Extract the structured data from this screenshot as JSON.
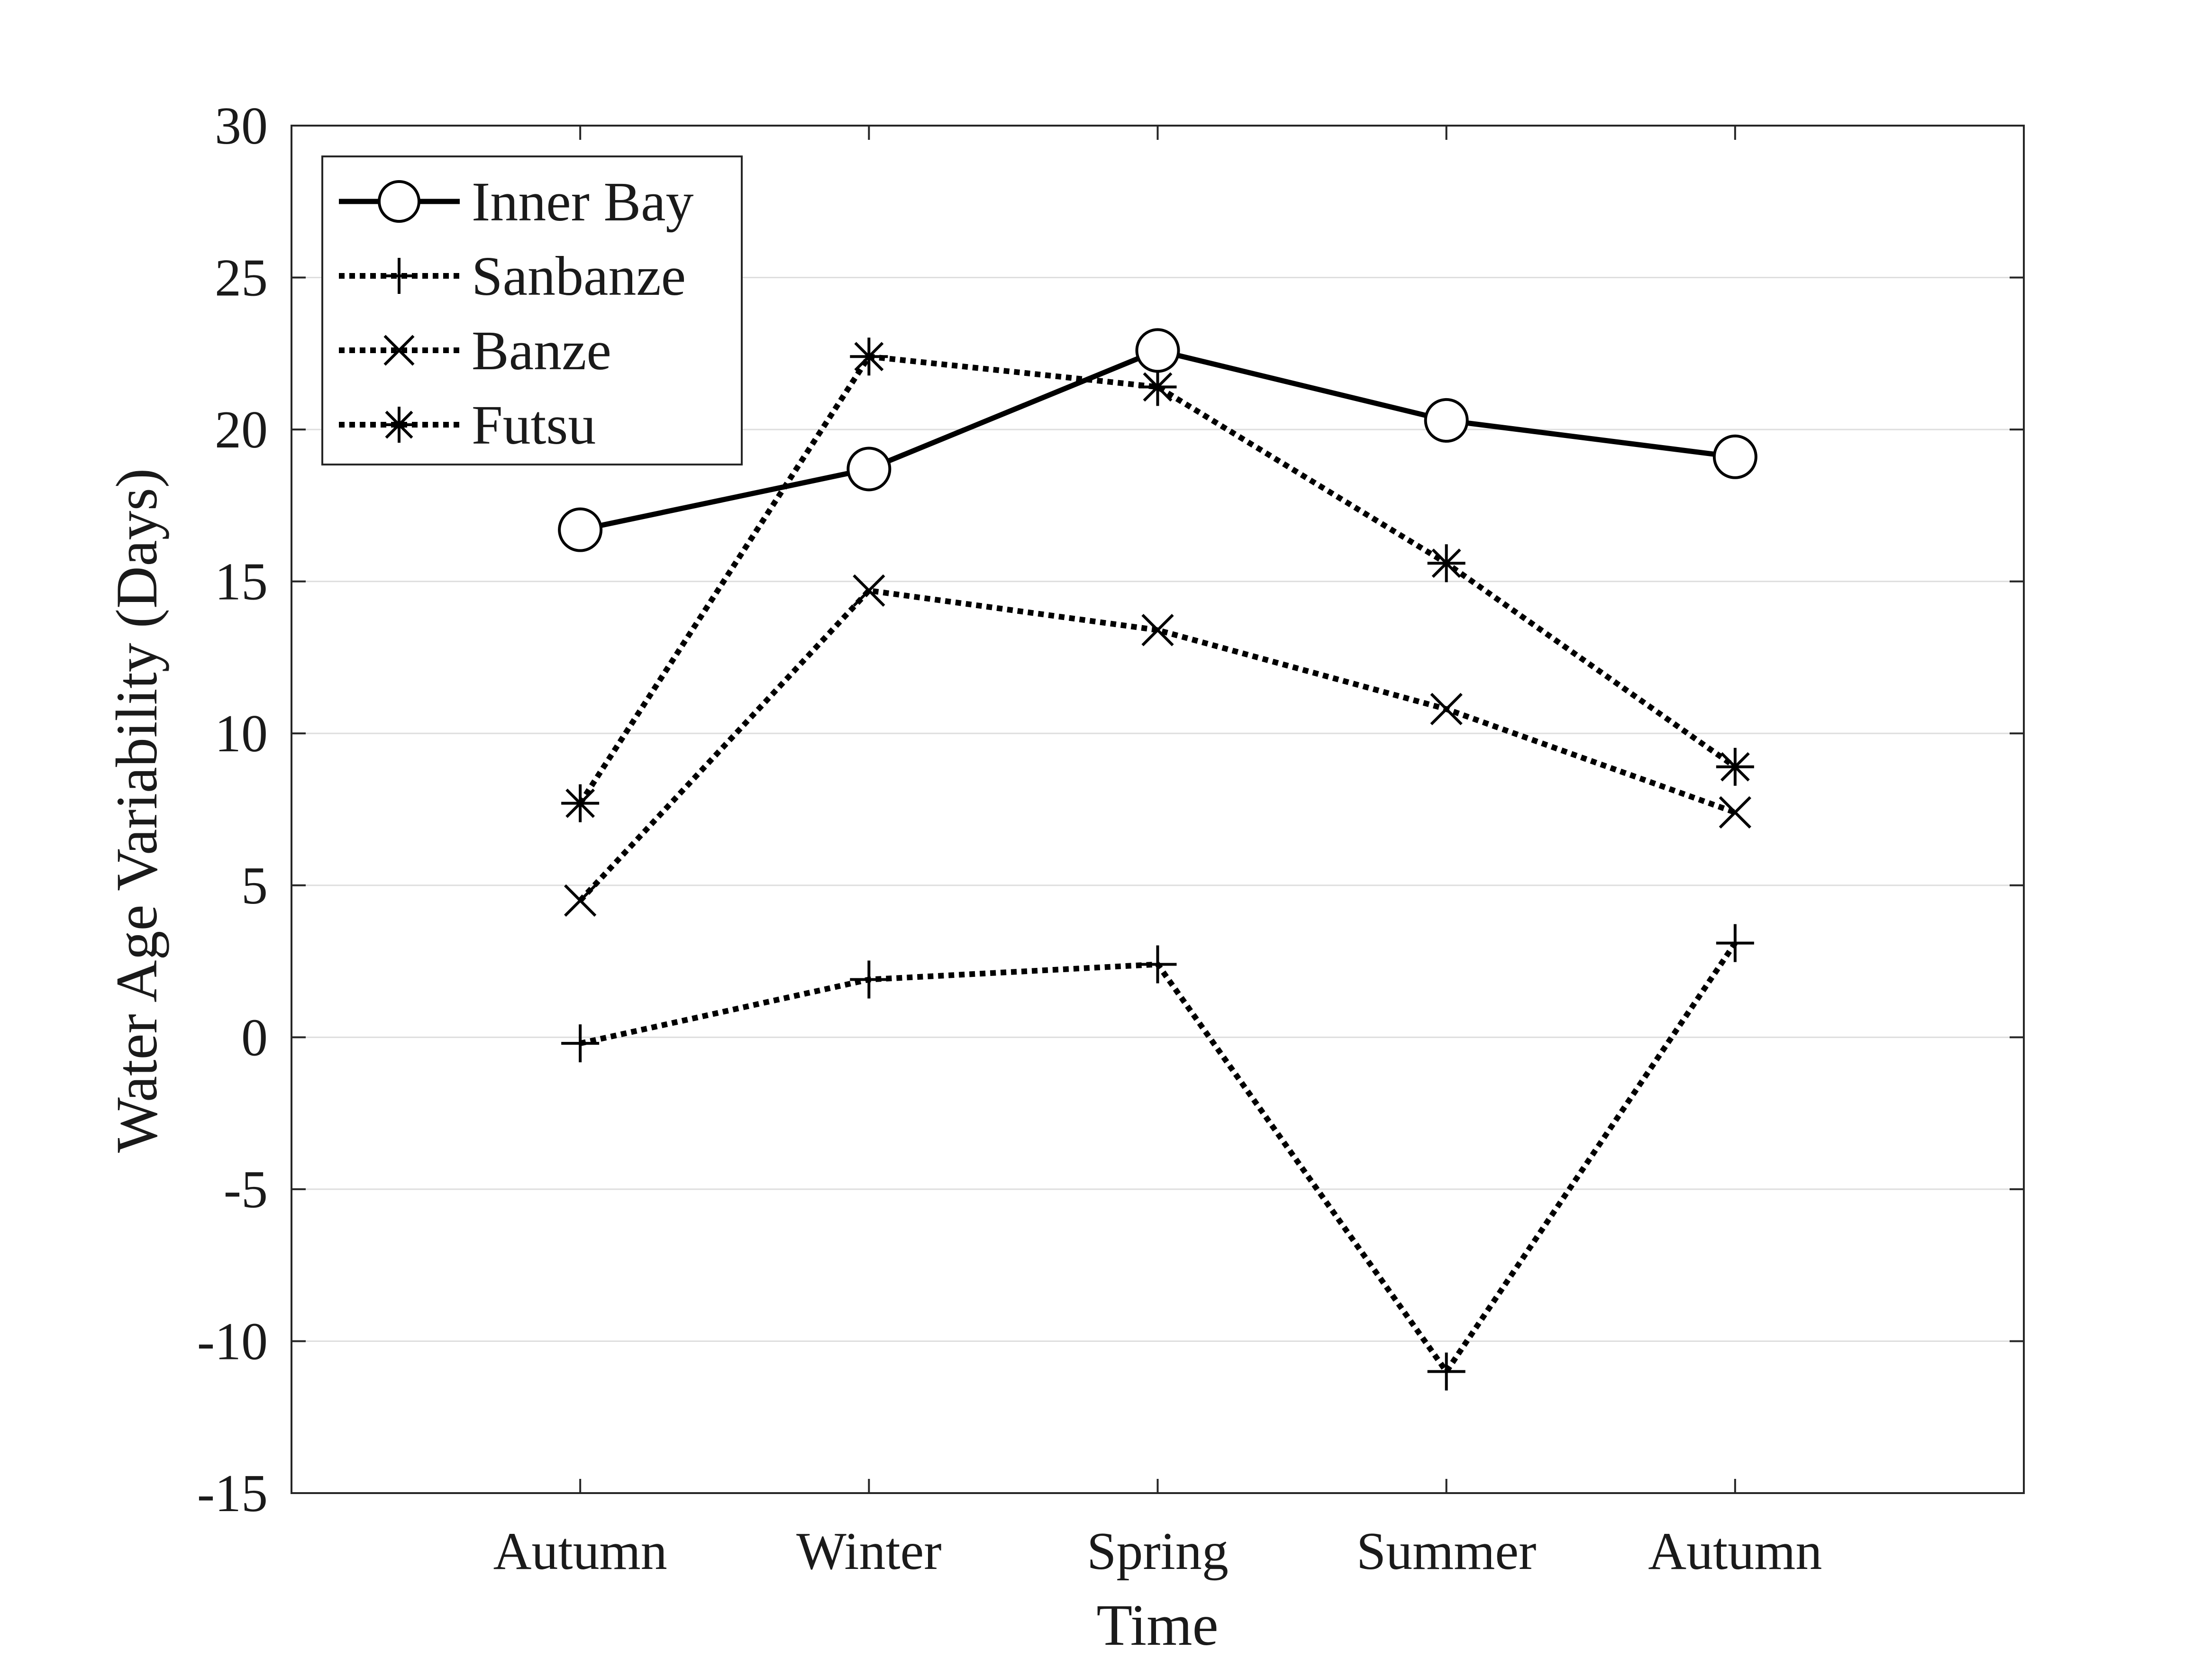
{
  "chart_data": {
    "type": "line",
    "title": "",
    "xlabel": "Time",
    "ylabel": "Water Age Variability (Days)",
    "categories": [
      "Autumn",
      "Winter",
      "Spring",
      "Summer",
      "Autumn"
    ],
    "x_range": [
      0,
      6
    ],
    "ylim": [
      -15,
      30
    ],
    "yticks": [
      -15,
      -10,
      -5,
      0,
      5,
      10,
      15,
      20,
      25,
      30
    ],
    "grid": "horizontal",
    "legend_position": "top-left",
    "series": [
      {
        "name": "Inner Bay",
        "values": [
          16.7,
          18.7,
          22.6,
          20.3,
          19.1
        ],
        "line": "solid",
        "marker": "circle",
        "color": "#000000"
      },
      {
        "name": "Sanbanze",
        "values": [
          -0.2,
          1.9,
          2.4,
          -11.0,
          3.1
        ],
        "line": "dotted",
        "marker": "plus",
        "color": "#000000"
      },
      {
        "name": "Banze",
        "values": [
          4.5,
          14.7,
          13.4,
          10.8,
          7.4
        ],
        "line": "dotted",
        "marker": "x",
        "color": "#000000"
      },
      {
        "name": "Futsu",
        "values": [
          7.7,
          22.4,
          21.4,
          15.6,
          8.9
        ],
        "line": "dotted",
        "marker": "star",
        "color": "#000000"
      }
    ]
  }
}
